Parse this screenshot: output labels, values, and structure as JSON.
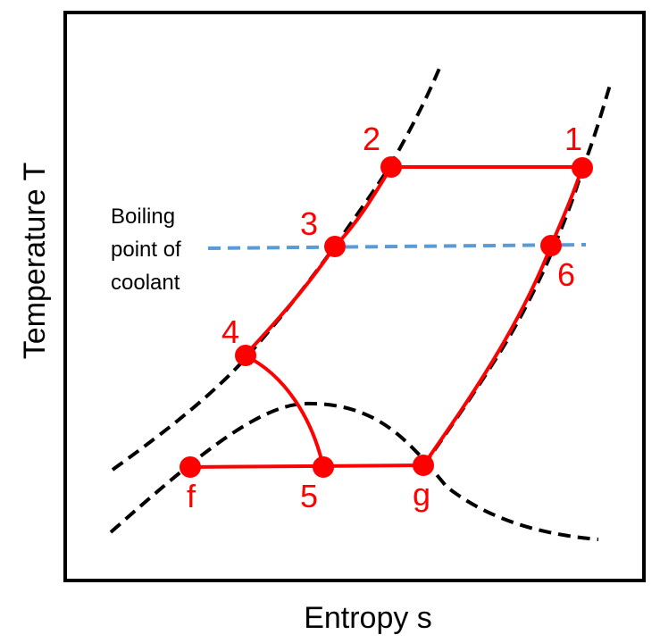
{
  "axes": {
    "x_label": "Entropy s",
    "y_label": "Temperature T"
  },
  "annotation": {
    "line1": "Boiling",
    "line2": "point of",
    "line3": "coolant"
  },
  "points": {
    "p1": "1",
    "p2": "2",
    "p3": "3",
    "p4": "4",
    "p5": "5",
    "p6": "6",
    "pf": "f",
    "pg": "g"
  },
  "colors": {
    "cycle": "#ff0000",
    "curves": "#000000",
    "boiling_line": "#5b9bd5",
    "frame": "#000000"
  }
}
